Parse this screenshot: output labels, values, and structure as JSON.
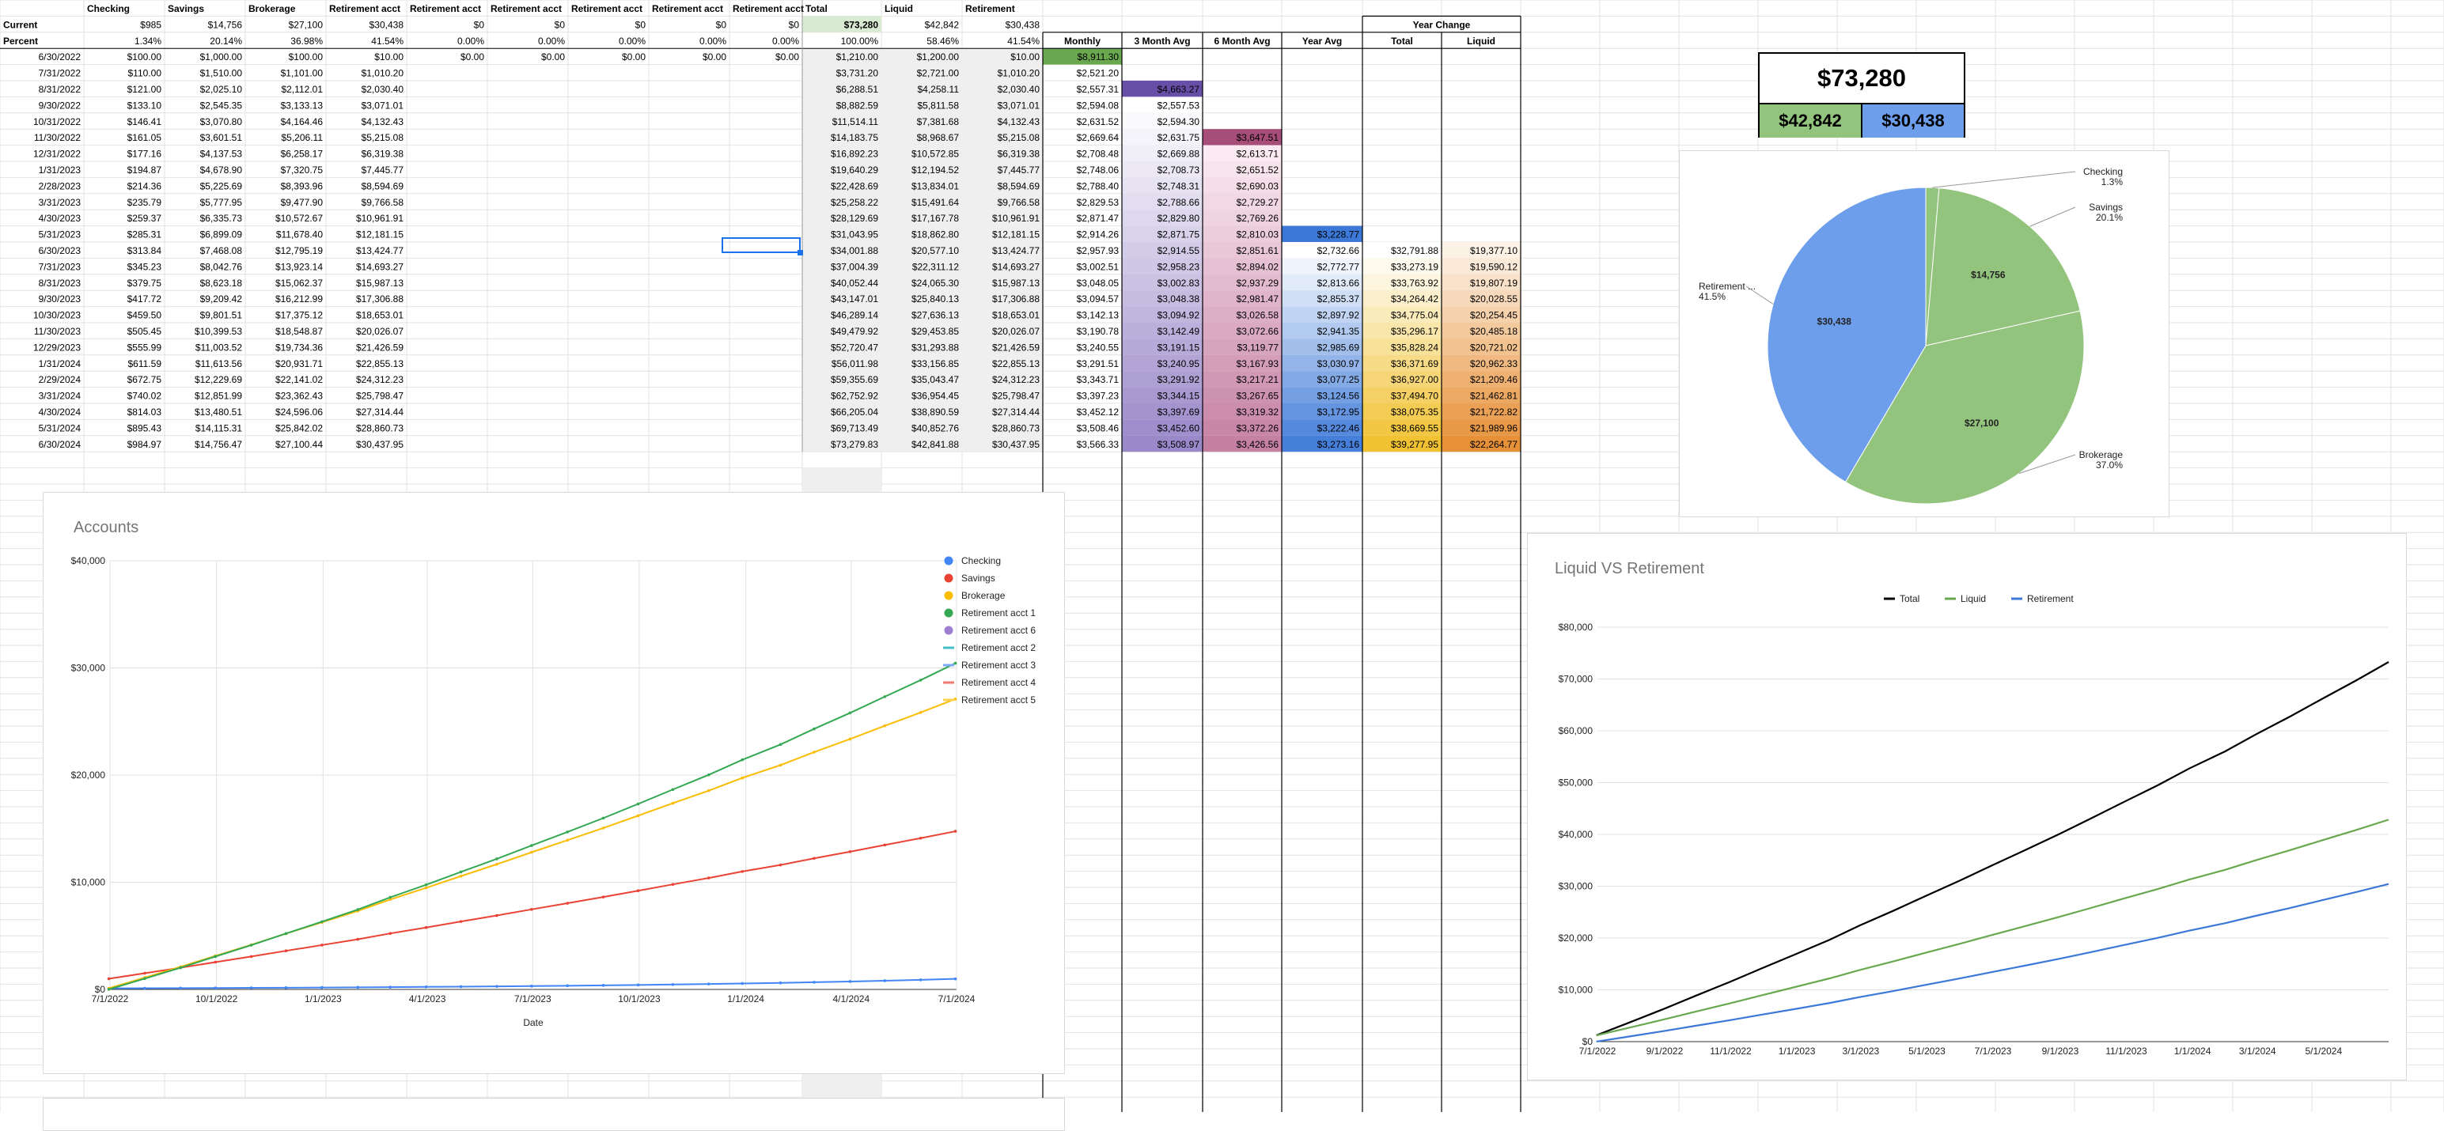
{
  "headers": [
    "",
    "Checking",
    "Savings",
    "Brokerage",
    "Retirement acct",
    "Retirement acct",
    "Retirement acct",
    "Retirement acct",
    "Retirement acct",
    "Retirement acct",
    "Total",
    "Liquid",
    "Retirement"
  ],
  "current": {
    "label": "Current",
    "values": [
      "$985",
      "$14,756",
      "$27,100",
      "$30,438",
      "$0",
      "$0",
      "$0",
      "$0",
      "$0",
      "$73,280",
      "$42,842",
      "$30,438"
    ]
  },
  "percent": {
    "label": "Percent",
    "values": [
      "1.34%",
      "20.14%",
      "36.98%",
      "41.54%",
      "0.00%",
      "0.00%",
      "0.00%",
      "0.00%",
      "0.00%",
      "100.00%",
      "58.46%",
      "41.54%"
    ]
  },
  "analysis_headers": {
    "monthly": "Monthly",
    "avg3": "3 Month Avg",
    "avg6": "6 Month Avg",
    "year_avg": "Year Avg",
    "year_change": "Year Change",
    "yc_total": "Total",
    "yc_liquid": "Liquid"
  },
  "rows": [
    [
      "6/30/2022",
      "$100.00",
      "$1,000.00",
      "$100.00",
      "$10.00",
      "$0.00",
      "$0.00",
      "$0.00",
      "$0.00",
      "$0.00",
      "$1,210.00",
      "$1,200.00",
      "$10.00",
      "$8,911.30",
      "",
      "",
      "",
      "",
      ""
    ],
    [
      "7/31/2022",
      "$110.00",
      "$1,510.00",
      "$1,101.00",
      "$1,010.20",
      "",
      "",
      "",
      "",
      "",
      "$3,731.20",
      "$2,721.00",
      "$1,010.20",
      "$2,521.20",
      "",
      "",
      "",
      "",
      ""
    ],
    [
      "8/31/2022",
      "$121.00",
      "$2,025.10",
      "$2,112.01",
      "$2,030.40",
      "",
      "",
      "",
      "",
      "",
      "$6,288.51",
      "$4,258.11",
      "$2,030.40",
      "$2,557.31",
      "$4,663.27",
      "",
      "",
      "",
      ""
    ],
    [
      "9/30/2022",
      "$133.10",
      "$2,545.35",
      "$3,133.13",
      "$3,071.01",
      "",
      "",
      "",
      "",
      "",
      "$8,882.59",
      "$5,811.58",
      "$3,071.01",
      "$2,594.08",
      "$2,557.53",
      "",
      "",
      "",
      ""
    ],
    [
      "10/31/2022",
      "$146.41",
      "$3,070.80",
      "$4,164.46",
      "$4,132.43",
      "",
      "",
      "",
      "",
      "",
      "$11,514.11",
      "$7,381.68",
      "$4,132.43",
      "$2,631.52",
      "$2,594.30",
      "",
      "",
      "",
      ""
    ],
    [
      "11/30/2022",
      "$161.05",
      "$3,601.51",
      "$5,206.11",
      "$5,215.08",
      "",
      "",
      "",
      "",
      "",
      "$14,183.75",
      "$8,968.67",
      "$5,215.08",
      "$2,669.64",
      "$2,631.75",
      "$3,647.51",
      "",
      "",
      ""
    ],
    [
      "12/31/2022",
      "$177.16",
      "$4,137.53",
      "$6,258.17",
      "$6,319.38",
      "",
      "",
      "",
      "",
      "",
      "$16,892.23",
      "$10,572.85",
      "$6,319.38",
      "$2,708.48",
      "$2,669.88",
      "$2,613.71",
      "",
      "",
      ""
    ],
    [
      "1/31/2023",
      "$194.87",
      "$4,678.90",
      "$7,320.75",
      "$7,445.77",
      "",
      "",
      "",
      "",
      "",
      "$19,640.29",
      "$12,194.52",
      "$7,445.77",
      "$2,748.06",
      "$2,708.73",
      "$2,651.52",
      "",
      "",
      ""
    ],
    [
      "2/28/2023",
      "$214.36",
      "$5,225.69",
      "$8,393.96",
      "$8,594.69",
      "",
      "",
      "",
      "",
      "",
      "$22,428.69",
      "$13,834.01",
      "$8,594.69",
      "$2,788.40",
      "$2,748.31",
      "$2,690.03",
      "",
      "",
      ""
    ],
    [
      "3/31/2023",
      "$235.79",
      "$5,777.95",
      "$9,477.90",
      "$9,766.58",
      "",
      "",
      "",
      "",
      "",
      "$25,258.22",
      "$15,491.64",
      "$9,766.58",
      "$2,829.53",
      "$2,788.66",
      "$2,729.27",
      "",
      "",
      ""
    ],
    [
      "4/30/2023",
      "$259.37",
      "$6,335.73",
      "$10,572.67",
      "$10,961.91",
      "",
      "",
      "",
      "",
      "",
      "$28,129.69",
      "$17,167.78",
      "$10,961.91",
      "$2,871.47",
      "$2,829.80",
      "$2,769.26",
      "",
      "",
      ""
    ],
    [
      "5/31/2023",
      "$285.31",
      "$6,899.09",
      "$11,678.40",
      "$12,181.15",
      "",
      "",
      "",
      "",
      "",
      "$31,043.95",
      "$18,862.80",
      "$12,181.15",
      "$2,914.26",
      "$2,871.75",
      "$2,810.03",
      "$3,228.77",
      "",
      ""
    ],
    [
      "6/30/2023",
      "$313.84",
      "$7,468.08",
      "$12,795.19",
      "$13,424.77",
      "",
      "",
      "",
      "",
      "",
      "$34,001.88",
      "$20,577.10",
      "$13,424.77",
      "$2,957.93",
      "$2,914.55",
      "$2,851.61",
      "$2,732.66",
      "$32,791.88",
      "$19,377.10"
    ],
    [
      "7/31/2023",
      "$345.23",
      "$8,042.76",
      "$13,923.14",
      "$14,693.27",
      "",
      "",
      "",
      "",
      "",
      "$37,004.39",
      "$22,311.12",
      "$14,693.27",
      "$3,002.51",
      "$2,958.23",
      "$2,894.02",
      "$2,772.77",
      "$33,273.19",
      "$19,590.12"
    ],
    [
      "8/31/2023",
      "$379.75",
      "$8,623.18",
      "$15,062.37",
      "$15,987.13",
      "",
      "",
      "",
      "",
      "",
      "$40,052.44",
      "$24,065.30",
      "$15,987.13",
      "$3,048.05",
      "$3,002.83",
      "$2,937.29",
      "$2,813.66",
      "$33,763.92",
      "$19,807.19"
    ],
    [
      "9/30/2023",
      "$417.72",
      "$9,209.42",
      "$16,212.99",
      "$17,306.88",
      "",
      "",
      "",
      "",
      "",
      "$43,147.01",
      "$25,840.13",
      "$17,306.88",
      "$3,094.57",
      "$3,048.38",
      "$2,981.47",
      "$2,855.37",
      "$34,264.42",
      "$20,028.55"
    ],
    [
      "10/30/2023",
      "$459.50",
      "$9,801.51",
      "$17,375.12",
      "$18,653.01",
      "",
      "",
      "",
      "",
      "",
      "$46,289.14",
      "$27,636.13",
      "$18,653.01",
      "$3,142.13",
      "$3,094.92",
      "$3,026.58",
      "$2,897.92",
      "$34,775.04",
      "$20,254.45"
    ],
    [
      "11/30/2023",
      "$505.45",
      "$10,399.53",
      "$18,548.87",
      "$20,026.07",
      "",
      "",
      "",
      "",
      "",
      "$49,479.92",
      "$29,453.85",
      "$20,026.07",
      "$3,190.78",
      "$3,142.49",
      "$3,072.66",
      "$2,941.35",
      "$35,296.17",
      "$20,485.18"
    ],
    [
      "12/29/2023",
      "$555.99",
      "$11,003.52",
      "$19,734.36",
      "$21,426.59",
      "",
      "",
      "",
      "",
      "",
      "$52,720.47",
      "$31,293.88",
      "$21,426.59",
      "$3,240.55",
      "$3,191.15",
      "$3,119.77",
      "$2,985.69",
      "$35,828.24",
      "$20,721.02"
    ],
    [
      "1/31/2024",
      "$611.59",
      "$11,613.56",
      "$20,931.71",
      "$22,855.13",
      "",
      "",
      "",
      "",
      "",
      "$56,011.98",
      "$33,156.85",
      "$22,855.13",
      "$3,291.51",
      "$3,240.95",
      "$3,167.93",
      "$3,030.97",
      "$36,371.69",
      "$20,962.33"
    ],
    [
      "2/29/2024",
      "$672.75",
      "$12,229.69",
      "$22,141.02",
      "$24,312.23",
      "",
      "",
      "",
      "",
      "",
      "$59,355.69",
      "$35,043.47",
      "$24,312.23",
      "$3,343.71",
      "$3,291.92",
      "$3,217.21",
      "$3,077.25",
      "$36,927.00",
      "$21,209.46"
    ],
    [
      "3/31/2024",
      "$740.02",
      "$12,851.99",
      "$23,362.43",
      "$25,798.47",
      "",
      "",
      "",
      "",
      "",
      "$62,752.92",
      "$36,954.45",
      "$25,798.47",
      "$3,397.23",
      "$3,344.15",
      "$3,267.65",
      "$3,124.56",
      "$37,494.70",
      "$21,462.81"
    ],
    [
      "4/30/2024",
      "$814.03",
      "$13,480.51",
      "$24,596.06",
      "$27,314.44",
      "",
      "",
      "",
      "",
      "",
      "$66,205.04",
      "$38,890.59",
      "$27,314.44",
      "$3,452.12",
      "$3,397.69",
      "$3,319.32",
      "$3,172.95",
      "$38,075.35",
      "$21,722.82"
    ],
    [
      "5/31/2024",
      "$895.43",
      "$14,115.31",
      "$25,842.02",
      "$28,860.73",
      "",
      "",
      "",
      "",
      "",
      "$69,713.49",
      "$40,852.76",
      "$28,860.73",
      "$3,508.46",
      "$3,452.60",
      "$3,372.26",
      "$3,222.46",
      "$38,669.55",
      "$21,989.96"
    ],
    [
      "6/30/2024",
      "$984.97",
      "$14,756.47",
      "$27,100.44",
      "$30,437.95",
      "",
      "",
      "",
      "",
      "",
      "$73,279.83",
      "$42,841.88",
      "$30,437.95",
      "$3,566.33",
      "$3,508.97",
      "$3,426.56",
      "$3,273.16",
      "$39,277.95",
      "$22,264.77"
    ]
  ],
  "kpi": {
    "total": "$73,280",
    "liquid": "$42,842",
    "retirement": "$30,438"
  },
  "colors": {
    "green": "#93c47d",
    "blue": "#6d9eeb",
    "purple": "#6a4c9c",
    "magenta": "#a64d79",
    "orange": "#f6b26b",
    "total_line": "#000000",
    "liquid_line": "#6aa84f",
    "retirement_line": "#3c78d8"
  },
  "chart_data": [
    {
      "type": "pie",
      "labels": [
        "Checking",
        "Savings",
        "Brokerage",
        "Retirement ..."
      ],
      "values": [
        985,
        14756,
        27100,
        30438
      ],
      "percent_labels": [
        "1.3%",
        "20.1%",
        "37.0%",
        "41.5%"
      ],
      "slice_labels": [
        "",
        "$14,756",
        "$27,100",
        "$30,438"
      ],
      "colors": [
        "#93c47d",
        "#93c47d",
        "#93c47d",
        "#6d9eeb"
      ]
    },
    {
      "type": "line",
      "title": "Accounts",
      "xlabel": "Date",
      "ylabel": "",
      "xlim": [
        "7/1/2022",
        "7/1/2024"
      ],
      "ylim": [
        0,
        40000
      ],
      "x_ticks": [
        "7/1/2022",
        "10/1/2022",
        "1/1/2023",
        "4/1/2023",
        "7/1/2023",
        "10/1/2023",
        "1/1/2024",
        "4/1/2024",
        "7/1/2024"
      ],
      "y_ticks": [
        "$0",
        "$10,000",
        "$20,000",
        "$30,000",
        "$40,000"
      ],
      "legend_position": "right",
      "series": [
        {
          "name": "Checking",
          "color": "#4285f4",
          "legend_style": "dot"
        },
        {
          "name": "Savings",
          "color": "#ea4335",
          "legend_style": "dot"
        },
        {
          "name": "Brokerage",
          "color": "#fbbc04",
          "legend_style": "dot"
        },
        {
          "name": "Retirement acct 1",
          "color": "#34a853",
          "legend_style": "dot"
        },
        {
          "name": "Retirement acct 6",
          "color": "#9e7fd1",
          "legend_style": "dot"
        },
        {
          "name": "Retirement acct 2",
          "color": "#46bdc6",
          "legend_style": "line"
        },
        {
          "name": "Retirement acct 3",
          "color": "#7baaf7",
          "legend_style": "line"
        },
        {
          "name": "Retirement acct 4",
          "color": "#f07b72",
          "legend_style": "line"
        },
        {
          "name": "Retirement acct 5",
          "color": "#fcd04f",
          "legend_style": "line"
        }
      ]
    },
    {
      "type": "line",
      "title": "Liquid VS Retirement",
      "xlim": [
        "7/1/2022",
        "6/30/2024"
      ],
      "ylim": [
        0,
        80000
      ],
      "x_ticks": [
        "7/1/2022",
        "9/1/2022",
        "11/1/2022",
        "1/1/2023",
        "3/1/2023",
        "5/1/2023",
        "7/1/2023",
        "9/1/2023",
        "11/1/2023",
        "1/1/2024",
        "3/1/2024",
        "5/1/2024"
      ],
      "y_ticks": [
        "$0",
        "$10,000",
        "$20,000",
        "$30,000",
        "$40,000",
        "$50,000",
        "$60,000",
        "$70,000",
        "$80,000"
      ],
      "legend_position": "top",
      "series": [
        {
          "name": "Total",
          "color": "#000000"
        },
        {
          "name": "Liquid",
          "color": "#6aa84f"
        },
        {
          "name": "Retirement",
          "color": "#3c78d8"
        }
      ]
    }
  ]
}
